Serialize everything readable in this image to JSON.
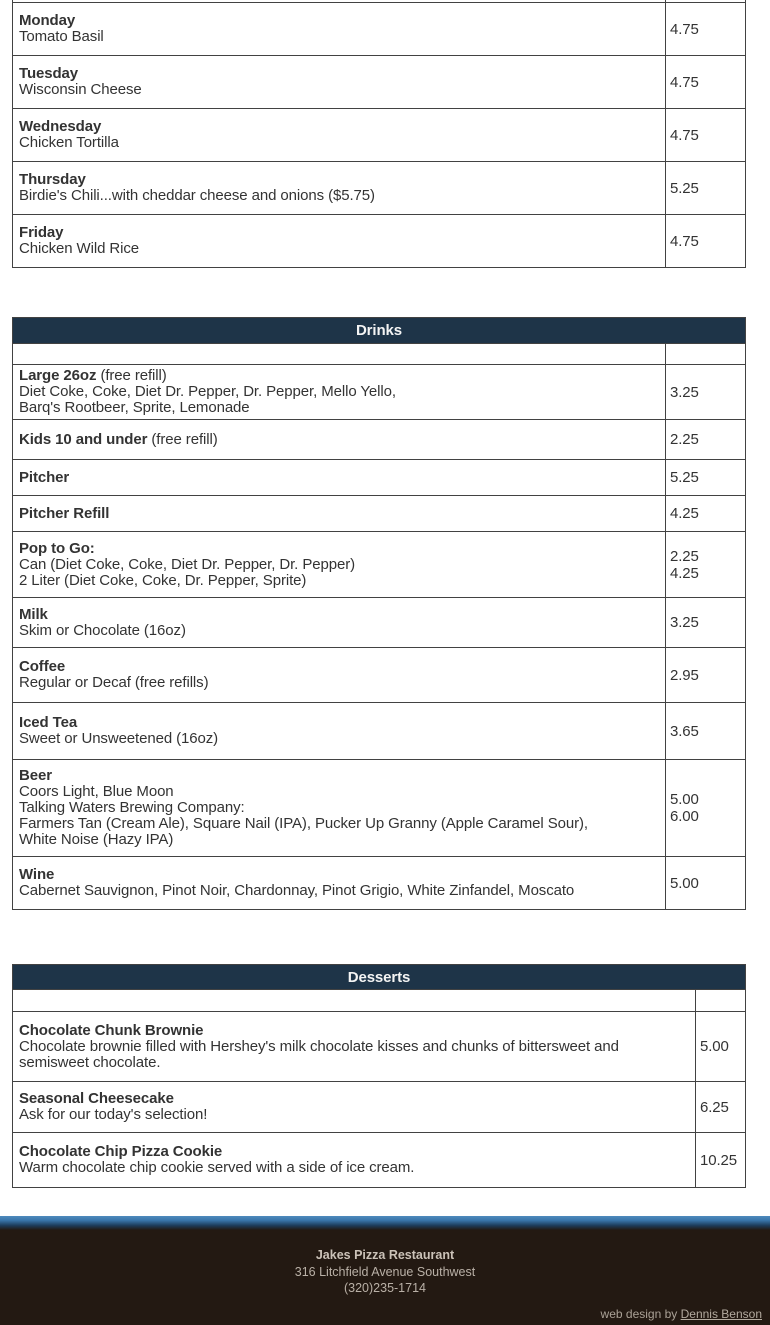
{
  "colors": {
    "section_header_bg": "#1e3448",
    "section_header_text": "#f4f4f4",
    "table_border": "#424242",
    "body_text": "#333333",
    "footer_bg": "#231912",
    "footer_text": "#b9b0a6",
    "footer_divider_blue": "#3a76ab"
  },
  "soup_schedule": {
    "rows": [
      {
        "name": "Monday",
        "desc": "Tomato Basil",
        "price": "4.75"
      },
      {
        "name": "Tuesday",
        "desc": "Wisconsin Cheese",
        "price": "4.75"
      },
      {
        "name": "Wednesday",
        "desc": "Chicken Tortilla",
        "price": "4.75"
      },
      {
        "name": "Thursday",
        "desc": "Birdie's Chili...with cheddar cheese and onions ($5.75)",
        "price": "5.25"
      },
      {
        "name": "Friday",
        "desc": "Chicken Wild Rice",
        "price": "4.75"
      }
    ]
  },
  "drinks": {
    "title": "Drinks",
    "rows": [
      {
        "name": "Large 26oz",
        "name_note": " (free refill)",
        "desc": "Diet Coke, Coke, Diet Dr. Pepper, Dr. Pepper, Mello Yello,\nBarq's Rootbeer, Sprite, Lemonade",
        "price": "3.25"
      },
      {
        "name": "Kids 10 and under",
        "name_note": " (free refill)",
        "price": "2.25"
      },
      {
        "name": "Pitcher",
        "price": "5.25"
      },
      {
        "name": "Pitcher Refill",
        "price": "4.25"
      },
      {
        "name": "Pop to Go:",
        "desc": "Can (Diet Coke, Coke, Diet Dr. Pepper, Dr. Pepper)\n2 Liter (Diet Coke, Coke, Dr. Pepper, Sprite)",
        "price": "2.25\n4.25"
      },
      {
        "name": "Milk",
        "desc": "Skim or Chocolate (16oz)",
        "price": "3.25"
      },
      {
        "name": "Coffee",
        "desc": "Regular or Decaf (free refills)",
        "price": "2.95"
      },
      {
        "name": "Iced Tea",
        "desc": "Sweet or Unsweetened (16oz)",
        "price": "3.65"
      },
      {
        "name": "Beer",
        "desc": "Coors Light, Blue Moon\nTalking Waters Brewing Company:\nFarmers Tan (Cream Ale), Square Nail (IPA), Pucker Up Granny (Apple Caramel Sour),\nWhite Noise (Hazy IPA)",
        "price": "5.00\n6.00"
      },
      {
        "name": "Wine",
        "desc": "Cabernet Sauvignon, Pinot Noir, Chardonnay, Pinot Grigio, White Zinfandel, Moscato",
        "price": "5.00"
      }
    ]
  },
  "desserts": {
    "title": "Desserts",
    "rows": [
      {
        "name": "Chocolate Chunk Brownie",
        "desc": "Chocolate brownie filled with Hershey's milk chocolate kisses and chunks of bittersweet and\nsemisweet chocolate.",
        "price": "5.00"
      },
      {
        "name": "Seasonal Cheesecake",
        "desc": "Ask for our today's selection!",
        "price": "6.25"
      },
      {
        "name": "Chocolate Chip Pizza Cookie",
        "desc": "Warm chocolate chip cookie served with a side of ice cream.",
        "price": "10.25"
      }
    ]
  },
  "footer": {
    "restaurant_name": "Jakes Pizza Restaurant",
    "address": "316 Litchfield Avenue Southwest",
    "phone": "(320)235-1714",
    "credit_prefix": "web design by",
    "credit_link": "Dennis Benson"
  }
}
